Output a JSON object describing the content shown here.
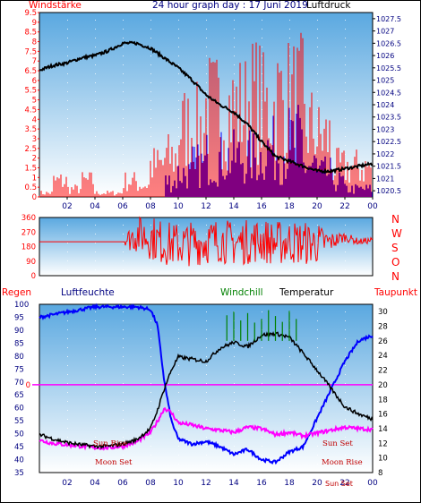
{
  "header": {
    "wind_label": "Windstärke",
    "title": "24 hour graph day : 17 Juni 2019",
    "pressure_label": "Luftdruck"
  },
  "middle": {
    "compass_labels": [
      "N",
      "W",
      "S",
      "O",
      "N"
    ]
  },
  "bottom_header": {
    "rain_label": "Regen",
    "humidity_label": "Luftfeuchte",
    "windchill_label": "Windchill",
    "temperature_label": "Temperatur",
    "dewpoint_label": "Taupunkt"
  },
  "annotations": {
    "sun_rise": "Sun Rise",
    "moon_set_left": "Moon Set",
    "sun_set": "Sun Set",
    "moon_rise": "Moon Rise",
    "sun_set_axis": "Sun Set"
  },
  "colors": {
    "wind_speed": "#ff0000",
    "gust": "#0000ff",
    "pressure": "#000000",
    "direction": "#ff0000",
    "humidity": "#0000ff",
    "temperature": "#000000",
    "dewpoint": "#ff00ff",
    "windchill": "#008000",
    "label_red": "#ff0000",
    "label_blue": "#000080",
    "background_top": "#5aa8e0",
    "background_bottom": "#ffffff"
  },
  "chart_data": [
    {
      "type": "line",
      "name": "wind_pressure",
      "x_ticks": [
        "02",
        "04",
        "06",
        "08",
        "10",
        "12",
        "14",
        "16",
        "18",
        "20",
        "22",
        "00"
      ],
      "y_left_ticks": [
        "0",
        "0.5",
        "1",
        "1.5",
        "2",
        "2.5",
        "3",
        "3.5",
        "4",
        "4.5",
        "5",
        "5.5",
        "6",
        "6.5",
        "7",
        "7.5",
        "8",
        "8.5",
        "9",
        "9.5"
      ],
      "y_left_range": [
        0,
        9.5
      ],
      "y_right_ticks": [
        "1020.5",
        "1021",
        "1021.5",
        "1022",
        "1022.5",
        "1023",
        "1023.5",
        "1024",
        "1024.5",
        "1025",
        "1025.5",
        "1026",
        "1026.5",
        "1027",
        "1027.5"
      ],
      "y_right_range": [
        1020.25,
        1027.75
      ],
      "pressure": {
        "x": [
          0,
          0.5,
          1,
          2,
          3,
          4,
          5,
          6,
          7,
          8,
          9,
          10,
          11,
          12,
          13,
          14,
          15,
          16,
          17,
          18,
          19,
          20,
          21,
          22,
          23,
          24
        ],
        "y": [
          1025.4,
          1025.5,
          1025.6,
          1025.7,
          1025.9,
          1026.0,
          1026.2,
          1026.5,
          1026.5,
          1026.3,
          1025.9,
          1025.5,
          1025.0,
          1024.4,
          1024.0,
          1023.7,
          1023.2,
          1022.5,
          1021.9,
          1021.7,
          1021.5,
          1021.3,
          1021.3,
          1021.4,
          1021.5,
          1021.6
        ]
      },
      "wind_speed_level_by_hour": [
        0.2,
        0.8,
        0.4,
        0.8,
        0.2,
        0.2,
        0.8,
        0.6,
        1.6,
        2.0,
        3.5,
        3.5,
        4.5,
        4.5,
        4.5,
        5.0,
        4.5,
        5.0,
        5.0,
        3.5,
        3.0,
        1.5,
        1.5,
        1.5
      ],
      "gust_level_by_hour": [
        0,
        0,
        0,
        0,
        0,
        0,
        0,
        0,
        0,
        1.0,
        1.5,
        2.0,
        2.5,
        2.5,
        2.5,
        2.5,
        3.0,
        3.0,
        3.5,
        2.0,
        1.5,
        1.0,
        0.5,
        0.5
      ]
    },
    {
      "type": "line",
      "name": "wind_direction",
      "y_ticks": [
        "0",
        "90",
        "180",
        "270",
        "360"
      ],
      "y_range": [
        0,
        360
      ],
      "x": [
        0,
        6,
        6.5,
        7,
        8,
        9,
        10,
        11,
        12,
        13,
        14,
        15,
        16,
        17,
        18,
        19,
        20,
        21,
        22,
        23,
        24
      ],
      "mean_deg": [
        210,
        210,
        230,
        260,
        240,
        200,
        190,
        200,
        210,
        220,
        200,
        210,
        220,
        200,
        210,
        200,
        200,
        210,
        240,
        210,
        220
      ],
      "spread_deg": [
        0,
        0,
        80,
        120,
        140,
        140,
        140,
        140,
        140,
        140,
        140,
        140,
        140,
        140,
        140,
        140,
        130,
        60,
        30,
        20,
        20
      ]
    },
    {
      "type": "line",
      "name": "temp_humidity",
      "y_left_ticks": [
        "35",
        "40",
        "45",
        "50",
        "55",
        "60",
        "65",
        "70",
        "75",
        "80",
        "85",
        "90",
        "95",
        "100"
      ],
      "y_left_range": [
        35,
        100
      ],
      "y_right_ticks": [
        "8",
        "10",
        "12",
        "14",
        "16",
        "18",
        "20",
        "22",
        "24",
        "26",
        "28",
        "30"
      ],
      "y_right_range": [
        8,
        31
      ],
      "zero_line_left": "0",
      "temperature": {
        "x": [
          0,
          1,
          2,
          3,
          4,
          5,
          6,
          7,
          8,
          8.5,
          9,
          9.5,
          10,
          11,
          12,
          13,
          14,
          15,
          16,
          17,
          18,
          19,
          20,
          21,
          22,
          23,
          24
        ],
        "y": [
          13.2,
          12.6,
          12.1,
          11.8,
          11.6,
          11.6,
          11.9,
          12.5,
          14.0,
          16.5,
          19.5,
          22.0,
          23.8,
          23.5,
          23.2,
          25.0,
          25.8,
          25.2,
          26.8,
          27.0,
          26.5,
          24.3,
          22.0,
          19.5,
          17.0,
          16.0,
          15.3
        ]
      },
      "dewpoint": {
        "x": [
          0,
          1,
          2,
          3,
          4,
          5,
          6,
          7,
          8,
          8.5,
          9,
          9.5,
          10,
          11,
          12,
          13,
          14,
          15,
          16,
          17,
          18,
          19,
          20,
          21,
          22,
          23,
          24
        ],
        "y": [
          12.4,
          12.0,
          11.8,
          11.6,
          11.4,
          11.4,
          11.6,
          12.2,
          13.5,
          15.0,
          16.8,
          16.2,
          14.8,
          14.5,
          14.0,
          13.8,
          13.5,
          14.2,
          14.0,
          13.2,
          13.5,
          13.0,
          13.4,
          13.8,
          14.2,
          14.0,
          13.9
        ]
      },
      "humidity": {
        "x": [
          0,
          1,
          2,
          3,
          4,
          5,
          6,
          7,
          8,
          8.5,
          9,
          9.5,
          10,
          11,
          12,
          13,
          14,
          15,
          16,
          17,
          18,
          19,
          20,
          21,
          22,
          23,
          24
        ],
        "y": [
          95,
          96,
          97,
          98,
          99,
          99,
          99,
          99,
          98,
          92,
          70,
          55,
          48,
          46,
          47,
          45,
          42,
          44,
          40,
          39,
          43,
          45,
          56,
          67,
          78,
          86,
          88
        ]
      },
      "windchill": {
        "x": [
          13.5,
          14,
          14.5,
          15,
          15.5,
          16,
          16.5,
          17,
          17.5,
          18,
          18.5
        ],
        "y": [
          29.5,
          30.0,
          28.8,
          29.8,
          28.5,
          29.0,
          30.2,
          29.4,
          28.6,
          30.1,
          29.0
        ]
      }
    }
  ]
}
